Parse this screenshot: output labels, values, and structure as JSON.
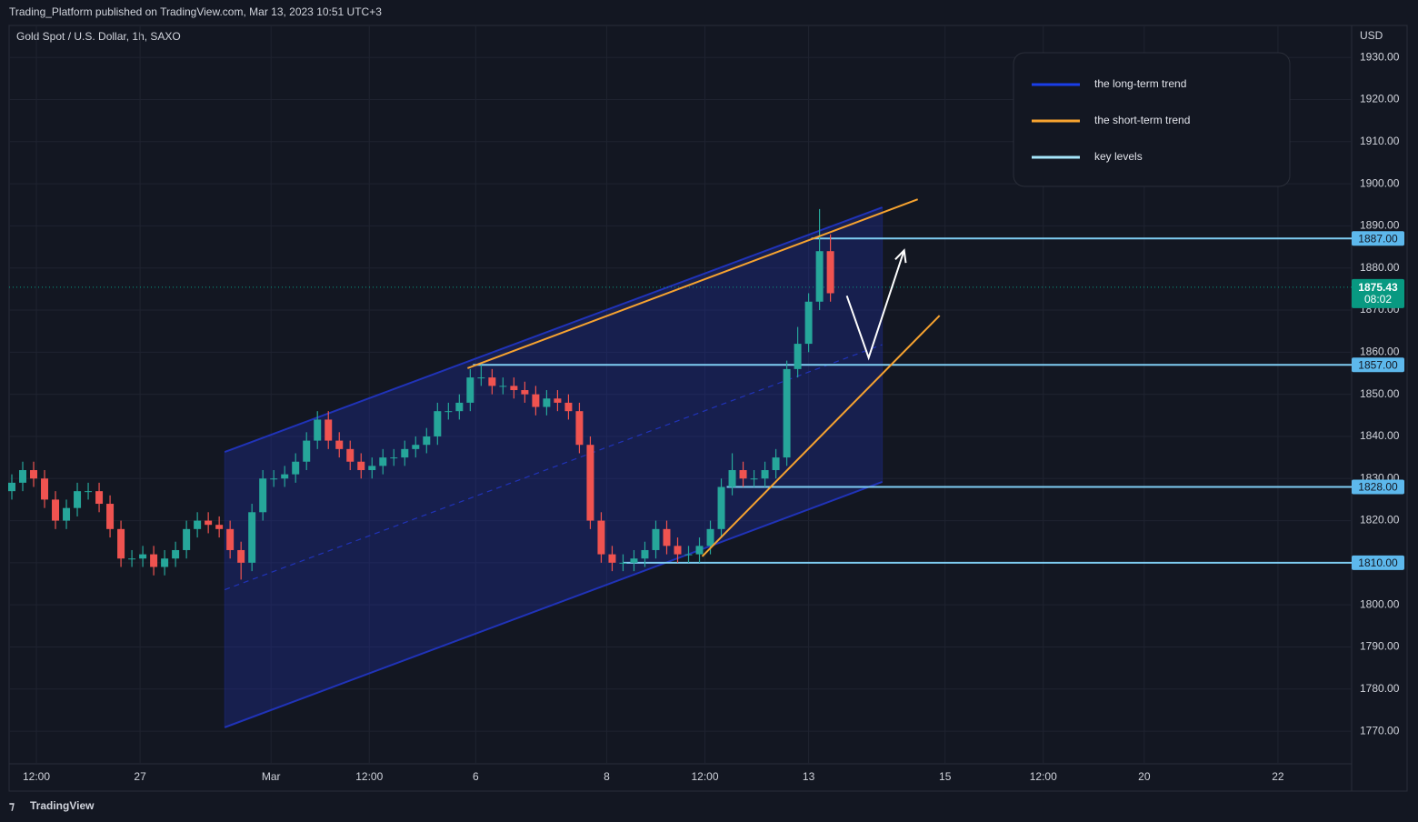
{
  "chart_data": {
    "type": "candlestick",
    "header": "Trading_Platform published on TradingView.com, Mar 13, 2023 10:51 UTC+3",
    "title": "Gold Spot / U.S. Dollar, 1h, SAXO",
    "y_axis_label": "USD",
    "footer": "TradingView",
    "x": [
      1,
      5,
      9,
      13,
      17,
      21,
      25,
      29,
      33,
      37,
      41,
      45,
      49,
      53,
      57,
      61,
      65,
      69,
      73,
      77,
      81,
      85,
      89,
      93,
      97,
      101,
      105,
      109,
      113,
      117,
      121,
      125,
      129,
      133,
      137,
      141,
      145,
      149,
      153,
      157,
      161,
      165,
      169,
      173,
      177,
      181,
      185,
      189,
      193,
      197,
      201,
      205,
      209,
      213,
      217,
      221,
      225,
      229,
      233,
      237,
      241,
      245,
      249,
      253,
      257,
      261,
      265,
      269,
      273,
      277,
      281,
      285,
      289,
      293,
      297,
      301
    ],
    "open": [
      1827,
      1829,
      1832,
      1830,
      1825,
      1820,
      1823,
      1827,
      1827,
      1824,
      1818,
      1811,
      1811,
      1812,
      1809,
      1811,
      1813,
      1818,
      1820,
      1819,
      1818,
      1813,
      1810,
      1822,
      1830,
      1830,
      1831,
      1834,
      1839,
      1844,
      1839,
      1837,
      1834,
      1832,
      1833,
      1835,
      1835,
      1837,
      1838,
      1840,
      1846,
      1846,
      1848,
      1854,
      1854,
      1852,
      1852,
      1851,
      1850,
      1847,
      1849,
      1848,
      1846,
      1838,
      1820,
      1812,
      1810,
      1810,
      1811,
      1813,
      1818,
      1814,
      1812,
      1812,
      1814,
      1818,
      1828,
      1832,
      1830,
      1830,
      1832,
      1835,
      1856,
      1862,
      1872,
      1884
    ],
    "high": [
      1831,
      1834,
      1834,
      1832,
      1827,
      1825,
      1829,
      1829,
      1829,
      1826,
      1820,
      1813,
      1814,
      1814,
      1813,
      1815,
      1820,
      1822,
      1822,
      1821,
      1820,
      1815,
      1824,
      1832,
      1832,
      1833,
      1836,
      1841,
      1846,
      1846,
      1841,
      1839,
      1836,
      1835,
      1837,
      1837,
      1839,
      1840,
      1842,
      1848,
      1848,
      1850,
      1856,
      1857,
      1856,
      1854,
      1854,
      1853,
      1852,
      1851,
      1851,
      1850,
      1848,
      1840,
      1822,
      1814,
      1812,
      1813,
      1815,
      1820,
      1820,
      1816,
      1814,
      1816,
      1820,
      1830,
      1836,
      1834,
      1832,
      1834,
      1837,
      1858,
      1866,
      1874,
      1894,
      1888
    ],
    "low": [
      1825,
      1827,
      1828,
      1823,
      1818,
      1818,
      1821,
      1825,
      1822,
      1816,
      1809,
      1809,
      1809,
      1807,
      1807,
      1809,
      1811,
      1816,
      1817,
      1816,
      1811,
      1806,
      1808,
      1820,
      1828,
      1828,
      1829,
      1832,
      1837,
      1837,
      1835,
      1832,
      1830,
      1830,
      1831,
      1833,
      1833,
      1835,
      1836,
      1838,
      1844,
      1844,
      1846,
      1852,
      1850,
      1850,
      1849,
      1848,
      1845,
      1845,
      1846,
      1844,
      1836,
      1818,
      1810,
      1808,
      1808,
      1808,
      1809,
      1811,
      1812,
      1810,
      1810,
      1810,
      1812,
      1816,
      1826,
      1828,
      1828,
      1828,
      1830,
      1833,
      1854,
      1860,
      1870,
      1872
    ],
    "close": [
      1829,
      1832,
      1830,
      1825,
      1820,
      1823,
      1827,
      1827,
      1824,
      1818,
      1811,
      1811,
      1812,
      1809,
      1811,
      1813,
      1818,
      1820,
      1819,
      1818,
      1813,
      1810,
      1822,
      1830,
      1830,
      1831,
      1834,
      1839,
      1844,
      1839,
      1837,
      1834,
      1832,
      1833,
      1835,
      1835,
      1837,
      1838,
      1840,
      1846,
      1846,
      1848,
      1854,
      1854,
      1852,
      1852,
      1851,
      1850,
      1847,
      1849,
      1848,
      1846,
      1838,
      1820,
      1812,
      1810,
      1810,
      1811,
      1813,
      1818,
      1814,
      1812,
      1812,
      1814,
      1818,
      1828,
      1832,
      1830,
      1830,
      1832,
      1835,
      1856,
      1862,
      1872,
      1884,
      1874
    ],
    "up_color": "#26a69a",
    "down_color": "#ef5350",
    "xlim": [
      0,
      492
    ],
    "ylim": [
      1756.2,
      1937.6
    ],
    "grid": true,
    "yticks": [
      {
        "value": 1770,
        "label": "1770.00"
      },
      {
        "value": 1780,
        "label": "1780.00"
      },
      {
        "value": 1790,
        "label": "1790.00"
      },
      {
        "value": 1800,
        "label": "1800.00"
      },
      {
        "value": 1810,
        "label": "1810.00"
      },
      {
        "value": 1820,
        "label": "1820.00"
      },
      {
        "value": 1830,
        "label": "1830.00"
      },
      {
        "value": 1840,
        "label": "1840.00"
      },
      {
        "value": 1850,
        "label": "1850.00"
      },
      {
        "value": 1860,
        "label": "1860.00"
      },
      {
        "value": 1870,
        "label": "1870.00"
      },
      {
        "value": 1880,
        "label": "1880.00"
      },
      {
        "value": 1890,
        "label": "1890.00"
      },
      {
        "value": 1900,
        "label": "1900.00"
      },
      {
        "value": 1910,
        "label": "1910.00"
      },
      {
        "value": 1920,
        "label": "1920.00"
      },
      {
        "value": 1930,
        "label": "1930.00"
      }
    ],
    "xticks": [
      {
        "value": 10,
        "label": "12:00"
      },
      {
        "value": 48,
        "label": "27"
      },
      {
        "value": 96,
        "label": "Mar"
      },
      {
        "value": 132,
        "label": "12:00"
      },
      {
        "value": 171,
        "label": "6"
      },
      {
        "value": 219,
        "label": "8"
      },
      {
        "value": 255,
        "label": "12:00"
      },
      {
        "value": 293,
        "label": "13"
      },
      {
        "value": 343,
        "label": "15"
      },
      {
        "value": 379,
        "label": "12:00"
      },
      {
        "value": 416,
        "label": "20"
      },
      {
        "value": 465,
        "label": "22"
      }
    ],
    "last_price": {
      "value": 1875.43,
      "countdown": "08:02",
      "color": "#089981"
    },
    "channel": {
      "color": "#2033b8",
      "fill": "rgba(32,48,170,0.33)",
      "upper": {
        "x": [
          79,
          320
        ],
        "y": [
          1836.3,
          1894.4
        ]
      },
      "lower": {
        "x": [
          79,
          320
        ],
        "y": [
          1770.9,
          1829.2
        ]
      }
    },
    "trend_lines": [
      {
        "color": "#f7a330",
        "x": [
          168,
          333
        ],
        "y": [
          1856.2,
          1896.3
        ]
      },
      {
        "color": "#f7a330",
        "x": [
          254,
          341
        ],
        "y": [
          1811.5,
          1868.7
        ]
      }
    ],
    "key_levels": {
      "color": "#7fcdf3",
      "levels": [
        {
          "value": 1887,
          "label": "1887.00",
          "x_start": 294
        },
        {
          "value": 1857,
          "label": "1857.00",
          "x_start": 170
        },
        {
          "value": 1828,
          "label": "1828.00",
          "x_start": 263
        },
        {
          "value": 1810,
          "label": "1810.00",
          "x_start": 225
        }
      ]
    },
    "arrow": {
      "color": "#ffffff",
      "x": [
        307,
        315,
        328
      ],
      "y": [
        1873.4,
        1858.7,
        1884.2
      ]
    },
    "legend": {
      "position": "top-right",
      "entries": [
        {
          "name": "the long-term trend",
          "color": "#1a3ee8"
        },
        {
          "name": "the short-term trend",
          "color": "#f7a330"
        },
        {
          "name": "key levels",
          "color": "#a6e6fb"
        }
      ]
    }
  }
}
